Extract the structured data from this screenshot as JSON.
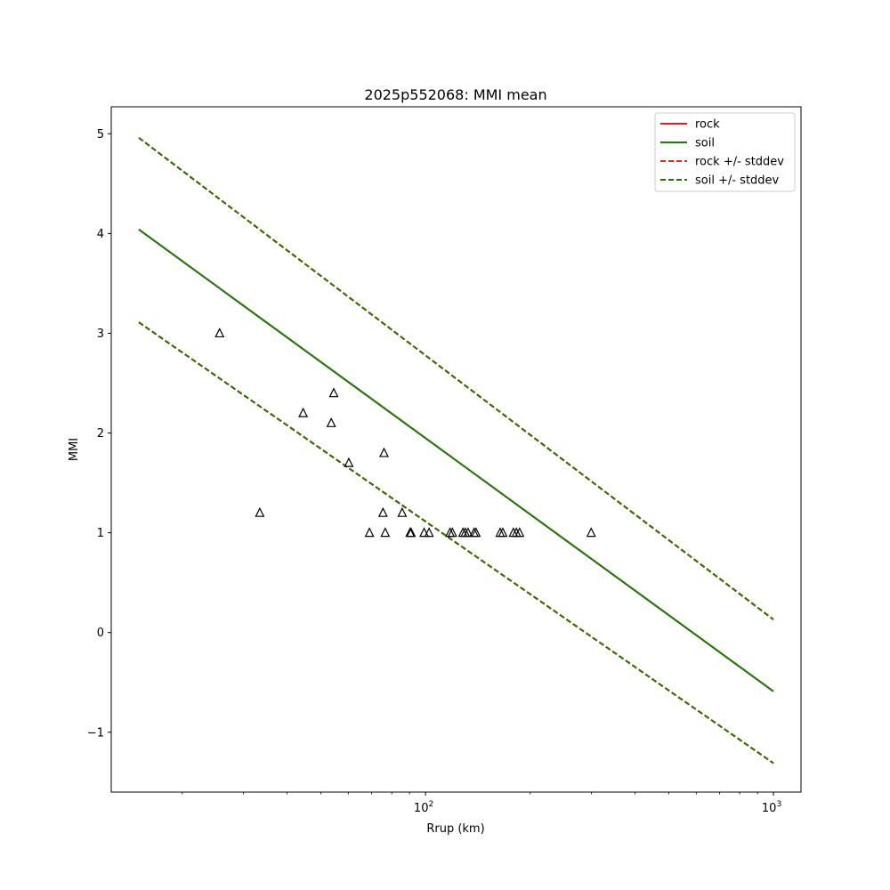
{
  "chart_data": {
    "type": "line",
    "title": "2025p552068: MMI mean",
    "xlabel": "Rrup (km)",
    "ylabel": "MMI",
    "x_scale": "log",
    "xlim": [
      12.5,
      1200
    ],
    "ylim": [
      -1.6,
      5.27
    ],
    "x_ticks": [
      {
        "value": 100,
        "base": "10",
        "exp": "2"
      },
      {
        "value": 1000,
        "base": "10",
        "exp": "3"
      }
    ],
    "y_ticks": [
      -1,
      0,
      1,
      2,
      3,
      4,
      5
    ],
    "y_tick_labels": [
      "−1",
      "0",
      "1",
      "2",
      "3",
      "4",
      "5"
    ],
    "grid": false,
    "legend_position": "top-right",
    "series": [
      {
        "name": "rock",
        "color": "#d62020",
        "dash": "solid",
        "x": [
          15.0,
          1000
        ],
        "y": [
          4.04,
          -0.59
        ]
      },
      {
        "name": "soil",
        "color": "#1e7a0e",
        "dash": "solid",
        "x": [
          15.0,
          1000
        ],
        "y": [
          4.04,
          -0.59
        ]
      },
      {
        "name": "rock +/- stddev",
        "color": "#ff1a1a",
        "dash": "dashed",
        "x": [
          15.0,
          1000
        ],
        "y": [
          4.96,
          0.13
        ],
        "y_lower": [
          3.11,
          -1.31
        ]
      },
      {
        "name": "soil +/- stddev",
        "color": "#2a7000",
        "dash": "dashed",
        "x": [
          15.0,
          1000
        ],
        "y": [
          4.96,
          0.13
        ],
        "y_lower": [
          3.11,
          -1.31
        ]
      }
    ],
    "observations": {
      "marker": "triangle",
      "color": "#000000",
      "points": [
        [
          25.6,
          3.0
        ],
        [
          33.4,
          1.2
        ],
        [
          44.5,
          2.2
        ],
        [
          53.6,
          2.1
        ],
        [
          54.5,
          2.4
        ],
        [
          60.2,
          1.7
        ],
        [
          69.0,
          1.0
        ],
        [
          75.5,
          1.2
        ],
        [
          76.0,
          1.8
        ],
        [
          76.6,
          1.0
        ],
        [
          85.7,
          1.2
        ],
        [
          90.3,
          1.0
        ],
        [
          90.9,
          1.0
        ],
        [
          99.1,
          1.0
        ],
        [
          102.4,
          1.0
        ],
        [
          117.6,
          1.0
        ],
        [
          119.5,
          1.0
        ],
        [
          128.1,
          1.0
        ],
        [
          130.1,
          1.0
        ],
        [
          132.5,
          1.0
        ],
        [
          137.9,
          1.0
        ],
        [
          139.7,
          1.0
        ],
        [
          163.9,
          1.0
        ],
        [
          166.8,
          1.0
        ],
        [
          178.9,
          1.0
        ],
        [
          182.5,
          1.0
        ],
        [
          186.4,
          1.0
        ],
        [
          299.3,
          1.0
        ]
      ]
    }
  }
}
